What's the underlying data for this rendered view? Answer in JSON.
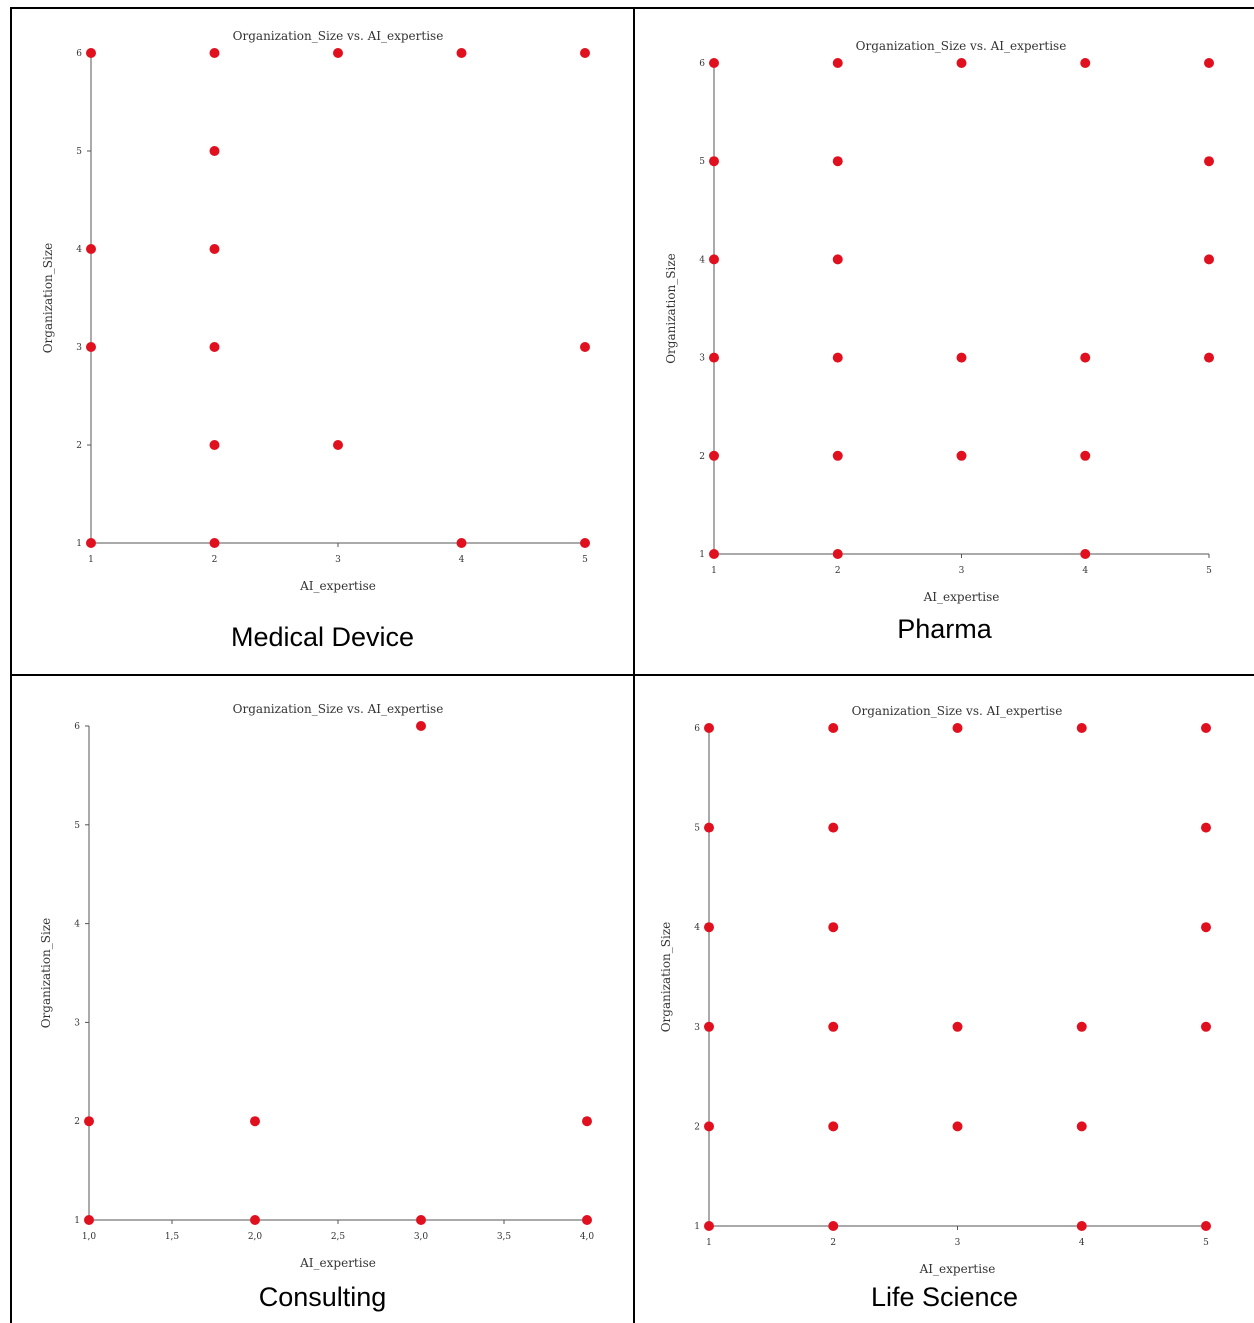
{
  "chart_data": [
    {
      "type": "scatter",
      "caption": "Medical Device",
      "title": "Organization_Size vs. AI_expertise",
      "xlabel": "AI_expertise",
      "ylabel": "Organization_Size",
      "xlim": [
        1,
        5
      ],
      "ylim": [
        1,
        6
      ],
      "xticks": [
        1,
        2,
        3,
        4,
        5
      ],
      "xtick_labels": [
        "1",
        "2",
        "3",
        "4",
        "5"
      ],
      "yticks": [
        1,
        2,
        3,
        4,
        5,
        6
      ],
      "ytick_labels": [
        "1",
        "2",
        "3",
        "4",
        "5",
        "6"
      ],
      "points": [
        [
          1,
          6
        ],
        [
          2,
          6
        ],
        [
          3,
          6
        ],
        [
          4,
          6
        ],
        [
          5,
          6
        ],
        [
          2,
          5
        ],
        [
          1,
          4
        ],
        [
          2,
          4
        ],
        [
          1,
          3
        ],
        [
          2,
          3
        ],
        [
          5,
          3
        ],
        [
          2,
          2
        ],
        [
          3,
          2
        ],
        [
          1,
          1
        ],
        [
          2,
          1
        ],
        [
          4,
          1
        ],
        [
          5,
          1
        ]
      ],
      "color": "#e0101e"
    },
    {
      "type": "scatter",
      "caption": "Pharma",
      "title": "Organization_Size vs. AI_expertise",
      "xlabel": "AI_expertise",
      "ylabel": "Organization_Size",
      "xlim": [
        1,
        5
      ],
      "ylim": [
        1,
        6
      ],
      "xticks": [
        1,
        2,
        3,
        4,
        5
      ],
      "xtick_labels": [
        "1",
        "2",
        "3",
        "4",
        "5"
      ],
      "yticks": [
        1,
        2,
        3,
        4,
        5,
        6
      ],
      "ytick_labels": [
        "1",
        "2",
        "3",
        "4",
        "5",
        "6"
      ],
      "points": [
        [
          1,
          6
        ],
        [
          2,
          6
        ],
        [
          3,
          6
        ],
        [
          4,
          6
        ],
        [
          5,
          6
        ],
        [
          1,
          5
        ],
        [
          2,
          5
        ],
        [
          5,
          5
        ],
        [
          1,
          4
        ],
        [
          2,
          4
        ],
        [
          5,
          4
        ],
        [
          1,
          3
        ],
        [
          2,
          3
        ],
        [
          3,
          3
        ],
        [
          4,
          3
        ],
        [
          5,
          3
        ],
        [
          1,
          2
        ],
        [
          2,
          2
        ],
        [
          3,
          2
        ],
        [
          4,
          2
        ],
        [
          1,
          1
        ],
        [
          2,
          1
        ],
        [
          4,
          1
        ]
      ],
      "color": "#e0101e"
    },
    {
      "type": "scatter",
      "caption": "Consulting",
      "title": "Organization_Size vs. AI_expertise",
      "xlabel": "AI_expertise",
      "ylabel": "Organization_Size",
      "xlim": [
        1,
        4
      ],
      "ylim": [
        1,
        6
      ],
      "xticks": [
        1,
        1.5,
        2,
        2.5,
        3,
        3.5,
        4
      ],
      "xtick_labels": [
        "1,0",
        "1,5",
        "2,0",
        "2,5",
        "3,0",
        "3,5",
        "4,0"
      ],
      "yticks": [
        1,
        2,
        3,
        4,
        5,
        6
      ],
      "ytick_labels": [
        "1",
        "2",
        "3",
        "4",
        "5",
        "6"
      ],
      "points": [
        [
          3,
          6
        ],
        [
          1,
          2
        ],
        [
          2,
          2
        ],
        [
          4,
          2
        ],
        [
          1,
          1
        ],
        [
          2,
          1
        ],
        [
          3,
          1
        ],
        [
          4,
          1
        ]
      ],
      "color": "#e0101e"
    },
    {
      "type": "scatter",
      "caption": "Life Science",
      "title": "Organization_Size vs. AI_expertise",
      "xlabel": "AI_expertise",
      "ylabel": "Organization_Size",
      "xlim": [
        1,
        5
      ],
      "ylim": [
        1,
        6
      ],
      "xticks": [
        1,
        2,
        3,
        4,
        5
      ],
      "xtick_labels": [
        "1",
        "2",
        "3",
        "4",
        "5"
      ],
      "yticks": [
        1,
        2,
        3,
        4,
        5,
        6
      ],
      "ytick_labels": [
        "1",
        "2",
        "3",
        "4",
        "5",
        "6"
      ],
      "points": [
        [
          1,
          6
        ],
        [
          2,
          6
        ],
        [
          3,
          6
        ],
        [
          4,
          6
        ],
        [
          5,
          6
        ],
        [
          1,
          5
        ],
        [
          2,
          5
        ],
        [
          5,
          5
        ],
        [
          1,
          4
        ],
        [
          2,
          4
        ],
        [
          5,
          4
        ],
        [
          1,
          3
        ],
        [
          2,
          3
        ],
        [
          3,
          3
        ],
        [
          4,
          3
        ],
        [
          5,
          3
        ],
        [
          1,
          2
        ],
        [
          2,
          2
        ],
        [
          3,
          2
        ],
        [
          4,
          2
        ],
        [
          1,
          1
        ],
        [
          2,
          1
        ],
        [
          4,
          1
        ],
        [
          5,
          1
        ]
      ],
      "color": "#e0101e"
    }
  ]
}
